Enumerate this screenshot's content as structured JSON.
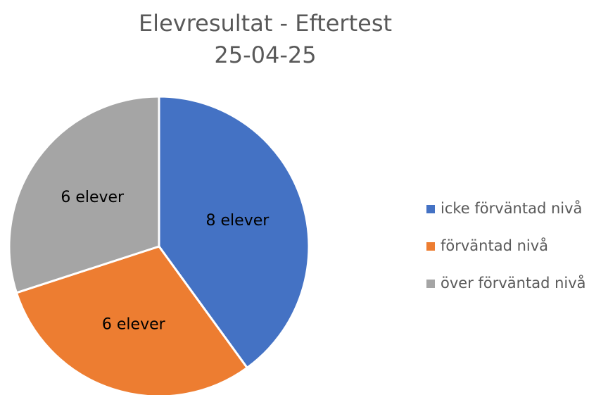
{
  "chart_data": {
    "type": "pie",
    "title": "Elevresultat - Eftertest",
    "subtitle": "25-04-25",
    "categories": [
      "icke förväntad nivå",
      "förväntad nivå",
      "över förväntad nivå"
    ],
    "values": [
      8,
      6,
      6
    ],
    "value_labels": [
      "8 elever",
      "6 elever",
      "6 elever"
    ],
    "colors": [
      "#4472c4",
      "#ed7d31",
      "#a5a5a5"
    ],
    "legend": "right"
  }
}
